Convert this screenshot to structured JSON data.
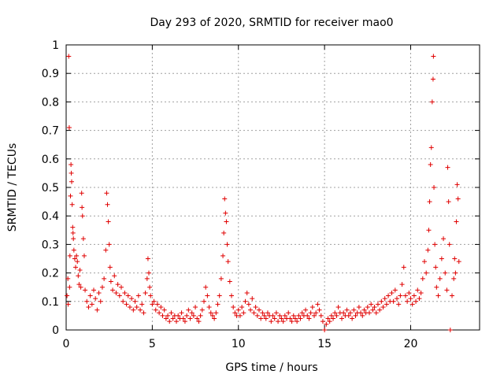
{
  "chart_data": {
    "type": "scatter",
    "title": "Day 293 of 2020, SRMTID for receiver mao0",
    "xlabel": "GPS time / hours",
    "ylabel": "SRMTID / TECUs",
    "xlim": [
      0,
      24
    ],
    "ylim": [
      0,
      1
    ],
    "xticks": [
      0,
      5,
      10,
      15,
      20
    ],
    "xtick_labels": [
      "0",
      "5",
      "10",
      "15",
      "20"
    ],
    "yticks": [
      0,
      0.1,
      0.2,
      0.3,
      0.4,
      0.5,
      0.6,
      0.7,
      0.8,
      0.9,
      1
    ],
    "ytick_labels": [
      "0",
      "0.1",
      "0.2",
      "0.3",
      "0.4",
      "0.5",
      "0.6",
      "0.7",
      "0.8",
      "0.9",
      "1"
    ],
    "grid": true,
    "marker": "+",
    "marker_color": "#e00000",
    "series": [
      {
        "name": "mao0",
        "points": [
          [
            0.05,
            0.12
          ],
          [
            0.1,
            0.18
          ],
          [
            0.12,
            0.09
          ],
          [
            0.15,
            0.96
          ],
          [
            0.18,
            0.71
          ],
          [
            0.2,
            0.15
          ],
          [
            0.22,
            0.26
          ],
          [
            0.25,
            0.47
          ],
          [
            0.28,
            0.58
          ],
          [
            0.3,
            0.55
          ],
          [
            0.32,
            0.52
          ],
          [
            0.35,
            0.44
          ],
          [
            0.38,
            0.36
          ],
          [
            0.4,
            0.34
          ],
          [
            0.42,
            0.32
          ],
          [
            0.45,
            0.28
          ],
          [
            0.5,
            0.25
          ],
          [
            0.55,
            0.22
          ],
          [
            0.6,
            0.26
          ],
          [
            0.65,
            0.24
          ],
          [
            0.7,
            0.19
          ],
          [
            0.75,
            0.16
          ],
          [
            0.8,
            0.21
          ],
          [
            0.85,
            0.15
          ],
          [
            0.9,
            0.48
          ],
          [
            0.92,
            0.43
          ],
          [
            0.95,
            0.4
          ],
          [
            1.0,
            0.32
          ],
          [
            1.05,
            0.26
          ],
          [
            1.1,
            0.14
          ],
          [
            1.2,
            0.1
          ],
          [
            1.3,
            0.08
          ],
          [
            1.4,
            0.12
          ],
          [
            1.5,
            0.09
          ],
          [
            1.6,
            0.14
          ],
          [
            1.7,
            0.11
          ],
          [
            1.8,
            0.07
          ],
          [
            1.9,
            0.13
          ],
          [
            2.0,
            0.1
          ],
          [
            2.1,
            0.15
          ],
          [
            2.2,
            0.18
          ],
          [
            2.3,
            0.28
          ],
          [
            2.35,
            0.48
          ],
          [
            2.4,
            0.44
          ],
          [
            2.45,
            0.38
          ],
          [
            2.5,
            0.3
          ],
          [
            2.55,
            0.22
          ],
          [
            2.6,
            0.17
          ],
          [
            2.7,
            0.14
          ],
          [
            2.8,
            0.19
          ],
          [
            2.9,
            0.13
          ],
          [
            3.0,
            0.16
          ],
          [
            3.1,
            0.12
          ],
          [
            3.2,
            0.15
          ],
          [
            3.3,
            0.1
          ],
          [
            3.4,
            0.13
          ],
          [
            3.5,
            0.09
          ],
          [
            3.6,
            0.12
          ],
          [
            3.7,
            0.08
          ],
          [
            3.8,
            0.11
          ],
          [
            3.9,
            0.07
          ],
          [
            4.0,
            0.1
          ],
          [
            4.1,
            0.08
          ],
          [
            4.2,
            0.12
          ],
          [
            4.3,
            0.07
          ],
          [
            4.4,
            0.09
          ],
          [
            4.5,
            0.06
          ],
          [
            4.6,
            0.13
          ],
          [
            4.7,
            0.18
          ],
          [
            4.75,
            0.25
          ],
          [
            4.8,
            0.2
          ],
          [
            4.85,
            0.15
          ],
          [
            4.9,
            0.12
          ],
          [
            5.0,
            0.09
          ],
          [
            5.1,
            0.1
          ],
          [
            5.2,
            0.07
          ],
          [
            5.3,
            0.09
          ],
          [
            5.4,
            0.06
          ],
          [
            5.5,
            0.08
          ],
          [
            5.6,
            0.05
          ],
          [
            5.7,
            0.07
          ],
          [
            5.8,
            0.04
          ],
          [
            5.9,
            0.05
          ],
          [
            6.0,
            0.03
          ],
          [
            6.1,
            0.06
          ],
          [
            6.2,
            0.04
          ],
          [
            6.3,
            0.05
          ],
          [
            6.4,
            0.03
          ],
          [
            6.5,
            0.05
          ],
          [
            6.6,
            0.04
          ],
          [
            6.7,
            0.06
          ],
          [
            6.8,
            0.04
          ],
          [
            6.9,
            0.03
          ],
          [
            7.0,
            0.05
          ],
          [
            7.1,
            0.07
          ],
          [
            7.2,
            0.04
          ],
          [
            7.3,
            0.06
          ],
          [
            7.4,
            0.05
          ],
          [
            7.5,
            0.08
          ],
          [
            7.6,
            0.04
          ],
          [
            7.7,
            0.03
          ],
          [
            7.8,
            0.05
          ],
          [
            7.9,
            0.07
          ],
          [
            8.0,
            0.1
          ],
          [
            8.1,
            0.15
          ],
          [
            8.2,
            0.12
          ],
          [
            8.3,
            0.08
          ],
          [
            8.4,
            0.06
          ],
          [
            8.5,
            0.05
          ],
          [
            8.6,
            0.04
          ],
          [
            8.7,
            0.06
          ],
          [
            8.8,
            0.09
          ],
          [
            8.9,
            0.12
          ],
          [
            9.0,
            0.18
          ],
          [
            9.1,
            0.26
          ],
          [
            9.15,
            0.34
          ],
          [
            9.2,
            0.46
          ],
          [
            9.25,
            0.41
          ],
          [
            9.3,
            0.38
          ],
          [
            9.35,
            0.3
          ],
          [
            9.4,
            0.24
          ],
          [
            9.5,
            0.17
          ],
          [
            9.6,
            0.12
          ],
          [
            9.7,
            0.08
          ],
          [
            9.8,
            0.06
          ],
          [
            9.9,
            0.05
          ],
          [
            10.0,
            0.07
          ],
          [
            10.1,
            0.05
          ],
          [
            10.2,
            0.08
          ],
          [
            10.3,
            0.06
          ],
          [
            10.4,
            0.1
          ],
          [
            10.5,
            0.13
          ],
          [
            10.6,
            0.09
          ],
          [
            10.7,
            0.07
          ],
          [
            10.8,
            0.11
          ],
          [
            10.9,
            0.06
          ],
          [
            11.0,
            0.08
          ],
          [
            11.1,
            0.05
          ],
          [
            11.2,
            0.07
          ],
          [
            11.3,
            0.04
          ],
          [
            11.4,
            0.06
          ],
          [
            11.5,
            0.05
          ],
          [
            11.6,
            0.04
          ],
          [
            11.7,
            0.06
          ],
          [
            11.8,
            0.05
          ],
          [
            11.9,
            0.03
          ],
          [
            12.0,
            0.05
          ],
          [
            12.1,
            0.04
          ],
          [
            12.2,
            0.06
          ],
          [
            12.3,
            0.03
          ],
          [
            12.4,
            0.05
          ],
          [
            12.5,
            0.04
          ],
          [
            12.6,
            0.03
          ],
          [
            12.7,
            0.05
          ],
          [
            12.8,
            0.04
          ],
          [
            12.9,
            0.06
          ],
          [
            13.0,
            0.04
          ],
          [
            13.1,
            0.03
          ],
          [
            13.2,
            0.05
          ],
          [
            13.3,
            0.04
          ],
          [
            13.4,
            0.03
          ],
          [
            13.5,
            0.05
          ],
          [
            13.6,
            0.04
          ],
          [
            13.7,
            0.06
          ],
          [
            13.8,
            0.05
          ],
          [
            13.9,
            0.07
          ],
          [
            14.0,
            0.05
          ],
          [
            14.1,
            0.04
          ],
          [
            14.2,
            0.06
          ],
          [
            14.3,
            0.08
          ],
          [
            14.4,
            0.05
          ],
          [
            14.5,
            0.06
          ],
          [
            14.6,
            0.09
          ],
          [
            14.7,
            0.07
          ],
          [
            14.8,
            0.05
          ],
          [
            14.9,
            0.03
          ],
          [
            15.0,
            0.0
          ],
          [
            15.1,
            0.02
          ],
          [
            15.2,
            0.04
          ],
          [
            15.3,
            0.03
          ],
          [
            15.4,
            0.05
          ],
          [
            15.5,
            0.04
          ],
          [
            15.6,
            0.06
          ],
          [
            15.7,
            0.05
          ],
          [
            15.8,
            0.08
          ],
          [
            15.9,
            0.06
          ],
          [
            16.0,
            0.04
          ],
          [
            16.1,
            0.06
          ],
          [
            16.2,
            0.05
          ],
          [
            16.3,
            0.07
          ],
          [
            16.4,
            0.05
          ],
          [
            16.5,
            0.06
          ],
          [
            16.6,
            0.04
          ],
          [
            16.7,
            0.07
          ],
          [
            16.8,
            0.05
          ],
          [
            16.9,
            0.06
          ],
          [
            17.0,
            0.08
          ],
          [
            17.1,
            0.06
          ],
          [
            17.2,
            0.05
          ],
          [
            17.3,
            0.07
          ],
          [
            17.4,
            0.06
          ],
          [
            17.5,
            0.08
          ],
          [
            17.6,
            0.06
          ],
          [
            17.7,
            0.09
          ],
          [
            17.8,
            0.07
          ],
          [
            17.9,
            0.08
          ],
          [
            18.0,
            0.06
          ],
          [
            18.1,
            0.09
          ],
          [
            18.2,
            0.07
          ],
          [
            18.3,
            0.1
          ],
          [
            18.4,
            0.08
          ],
          [
            18.5,
            0.11
          ],
          [
            18.6,
            0.09
          ],
          [
            18.7,
            0.12
          ],
          [
            18.8,
            0.1
          ],
          [
            18.9,
            0.13
          ],
          [
            19.0,
            0.1
          ],
          [
            19.1,
            0.14
          ],
          [
            19.2,
            0.11
          ],
          [
            19.3,
            0.09
          ],
          [
            19.4,
            0.12
          ],
          [
            19.5,
            0.16
          ],
          [
            19.6,
            0.22
          ],
          [
            19.7,
            0.12
          ],
          [
            19.8,
            0.1
          ],
          [
            19.9,
            0.13
          ],
          [
            20.0,
            0.11
          ],
          [
            20.1,
            0.09
          ],
          [
            20.2,
            0.12
          ],
          [
            20.3,
            0.1
          ],
          [
            20.4,
            0.14
          ],
          [
            20.5,
            0.11
          ],
          [
            20.6,
            0.13
          ],
          [
            20.7,
            0.18
          ],
          [
            20.8,
            0.24
          ],
          [
            20.9,
            0.2
          ],
          [
            21.0,
            0.28
          ],
          [
            21.05,
            0.35
          ],
          [
            21.1,
            0.45
          ],
          [
            21.15,
            0.58
          ],
          [
            21.2,
            0.64
          ],
          [
            21.25,
            0.8
          ],
          [
            21.3,
            0.88
          ],
          [
            21.32,
            0.96
          ],
          [
            21.35,
            0.5
          ],
          [
            21.4,
            0.3
          ],
          [
            21.45,
            0.22
          ],
          [
            21.5,
            0.15
          ],
          [
            21.6,
            0.12
          ],
          [
            21.7,
            0.18
          ],
          [
            21.8,
            0.25
          ],
          [
            21.9,
            0.32
          ],
          [
            22.0,
            0.2
          ],
          [
            22.1,
            0.14
          ],
          [
            22.15,
            0.57
          ],
          [
            22.2,
            0.45
          ],
          [
            22.25,
            0.3
          ],
          [
            22.3,
            0.0
          ],
          [
            22.4,
            0.12
          ],
          [
            22.5,
            0.18
          ],
          [
            22.55,
            0.25
          ],
          [
            22.6,
            0.2
          ],
          [
            22.65,
            0.38
          ],
          [
            22.7,
            0.51
          ],
          [
            22.75,
            0.46
          ],
          [
            22.8,
            0.24
          ]
        ]
      }
    ]
  }
}
